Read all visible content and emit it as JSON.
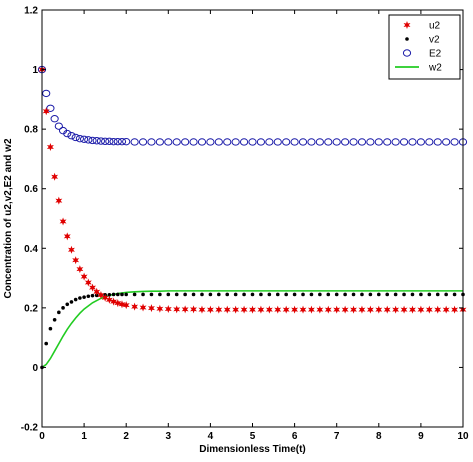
{
  "chart_data": {
    "type": "scatter",
    "xlabel": "Dimensionless Time(t)",
    "ylabel": "Concentration of u2,v2,E2 and w2",
    "xlim": [
      0,
      10
    ],
    "ylim": [
      -0.2,
      1.2
    ],
    "x_ticks": [
      "0",
      "1",
      "2",
      "3",
      "4",
      "5",
      "6",
      "7",
      "8",
      "9",
      "10"
    ],
    "y_ticks": [
      "-0.2",
      "0",
      "0.2",
      "0.4",
      "0.6",
      "0.8",
      "1",
      "1.2"
    ],
    "grid": false,
    "legend_position": "top-right",
    "colors": {
      "u2": "#e00000",
      "v2": "#000000",
      "E2": "#1a1aa8",
      "w2": "#22cc22"
    },
    "series": [
      {
        "name": "u2",
        "marker": "star",
        "x": [
          0,
          0.1,
          0.2,
          0.3,
          0.4,
          0.5,
          0.6,
          0.7,
          0.8,
          0.9,
          1.0,
          1.1,
          1.2,
          1.3,
          1.4,
          1.5,
          1.6,
          1.7,
          1.8,
          1.9,
          2.0,
          2.2,
          2.4,
          2.6,
          2.8,
          3.0,
          3.2,
          3.4,
          3.6,
          3.8,
          4.0,
          4.2,
          4.4,
          4.6,
          4.8,
          5.0,
          5.2,
          5.4,
          5.6,
          5.8,
          6.0,
          6.2,
          6.4,
          6.6,
          6.8,
          7.0,
          7.2,
          7.4,
          7.6,
          7.8,
          8.0,
          8.2,
          8.4,
          8.6,
          8.8,
          9.0,
          9.2,
          9.4,
          9.6,
          9.8,
          10.0
        ],
        "y": [
          1.0,
          0.86,
          0.74,
          0.64,
          0.56,
          0.49,
          0.44,
          0.395,
          0.36,
          0.33,
          0.305,
          0.285,
          0.268,
          0.254,
          0.243,
          0.234,
          0.227,
          0.221,
          0.216,
          0.212,
          0.209,
          0.204,
          0.201,
          0.199,
          0.197,
          0.196,
          0.195,
          0.195,
          0.195,
          0.194,
          0.194,
          0.194,
          0.194,
          0.194,
          0.194,
          0.194,
          0.194,
          0.194,
          0.194,
          0.194,
          0.194,
          0.194,
          0.194,
          0.194,
          0.194,
          0.194,
          0.194,
          0.194,
          0.194,
          0.194,
          0.194,
          0.194,
          0.194,
          0.194,
          0.194,
          0.194,
          0.194,
          0.194,
          0.194,
          0.194,
          0.194
        ]
      },
      {
        "name": "v2",
        "marker": "dot",
        "x": [
          0,
          0.1,
          0.2,
          0.3,
          0.4,
          0.5,
          0.6,
          0.7,
          0.8,
          0.9,
          1.0,
          1.1,
          1.2,
          1.3,
          1.4,
          1.5,
          1.6,
          1.7,
          1.8,
          1.9,
          2.0,
          2.2,
          2.4,
          2.6,
          2.8,
          3.0,
          3.2,
          3.4,
          3.6,
          3.8,
          4.0,
          4.2,
          4.4,
          4.6,
          4.8,
          5.0,
          5.2,
          5.4,
          5.6,
          5.8,
          6.0,
          6.2,
          6.4,
          6.6,
          6.8,
          7.0,
          7.2,
          7.4,
          7.6,
          7.8,
          8.0,
          8.2,
          8.4,
          8.6,
          8.8,
          9.0,
          9.2,
          9.4,
          9.6,
          9.8,
          10.0
        ],
        "y": [
          0,
          0.08,
          0.13,
          0.16,
          0.185,
          0.2,
          0.212,
          0.22,
          0.228,
          0.233,
          0.236,
          0.239,
          0.241,
          0.242,
          0.243,
          0.244,
          0.244,
          0.245,
          0.245,
          0.245,
          0.245,
          0.245,
          0.245,
          0.245,
          0.245,
          0.245,
          0.245,
          0.245,
          0.245,
          0.245,
          0.245,
          0.245,
          0.245,
          0.245,
          0.245,
          0.245,
          0.245,
          0.245,
          0.245,
          0.245,
          0.245,
          0.245,
          0.245,
          0.245,
          0.245,
          0.245,
          0.245,
          0.245,
          0.245,
          0.245,
          0.245,
          0.245,
          0.245,
          0.245,
          0.245,
          0.245,
          0.245,
          0.245,
          0.245,
          0.245,
          0.245
        ]
      },
      {
        "name": "E2",
        "marker": "circle",
        "x": [
          0,
          0.1,
          0.2,
          0.3,
          0.4,
          0.5,
          0.6,
          0.7,
          0.8,
          0.9,
          1.0,
          1.1,
          1.2,
          1.3,
          1.4,
          1.5,
          1.6,
          1.7,
          1.8,
          1.9,
          2.0,
          2.2,
          2.4,
          2.6,
          2.8,
          3.0,
          3.2,
          3.4,
          3.6,
          3.8,
          4.0,
          4.2,
          4.4,
          4.6,
          4.8,
          5.0,
          5.2,
          5.4,
          5.6,
          5.8,
          6.0,
          6.2,
          6.4,
          6.6,
          6.8,
          7.0,
          7.2,
          7.4,
          7.6,
          7.8,
          8.0,
          8.2,
          8.4,
          8.6,
          8.8,
          9.0,
          9.2,
          9.4,
          9.6,
          9.8,
          10.0
        ],
        "y": [
          1.0,
          0.92,
          0.87,
          0.835,
          0.81,
          0.795,
          0.785,
          0.778,
          0.772,
          0.768,
          0.766,
          0.764,
          0.762,
          0.761,
          0.76,
          0.759,
          0.759,
          0.758,
          0.758,
          0.758,
          0.758,
          0.757,
          0.757,
          0.757,
          0.757,
          0.757,
          0.757,
          0.757,
          0.757,
          0.757,
          0.757,
          0.757,
          0.757,
          0.757,
          0.757,
          0.757,
          0.757,
          0.757,
          0.757,
          0.757,
          0.757,
          0.757,
          0.757,
          0.757,
          0.757,
          0.757,
          0.757,
          0.757,
          0.757,
          0.757,
          0.757,
          0.757,
          0.757,
          0.757,
          0.757,
          0.757,
          0.757,
          0.757,
          0.757,
          0.757,
          0.757
        ]
      },
      {
        "name": "w2",
        "marker": "line",
        "x": [
          0,
          0.1,
          0.2,
          0.3,
          0.4,
          0.5,
          0.6,
          0.7,
          0.8,
          0.9,
          1.0,
          1.2,
          1.4,
          1.6,
          1.8,
          2.0,
          2.2,
          2.4,
          2.6,
          2.8,
          3.0,
          3.5,
          4.0,
          5.0,
          6.0,
          7.0,
          8.0,
          9.0,
          10.0
        ],
        "y": [
          0,
          0.01,
          0.03,
          0.055,
          0.08,
          0.105,
          0.128,
          0.148,
          0.166,
          0.182,
          0.196,
          0.217,
          0.232,
          0.242,
          0.248,
          0.252,
          0.254,
          0.255,
          0.256,
          0.256,
          0.257,
          0.257,
          0.257,
          0.257,
          0.257,
          0.257,
          0.257,
          0.257,
          0.257
        ]
      }
    ]
  }
}
